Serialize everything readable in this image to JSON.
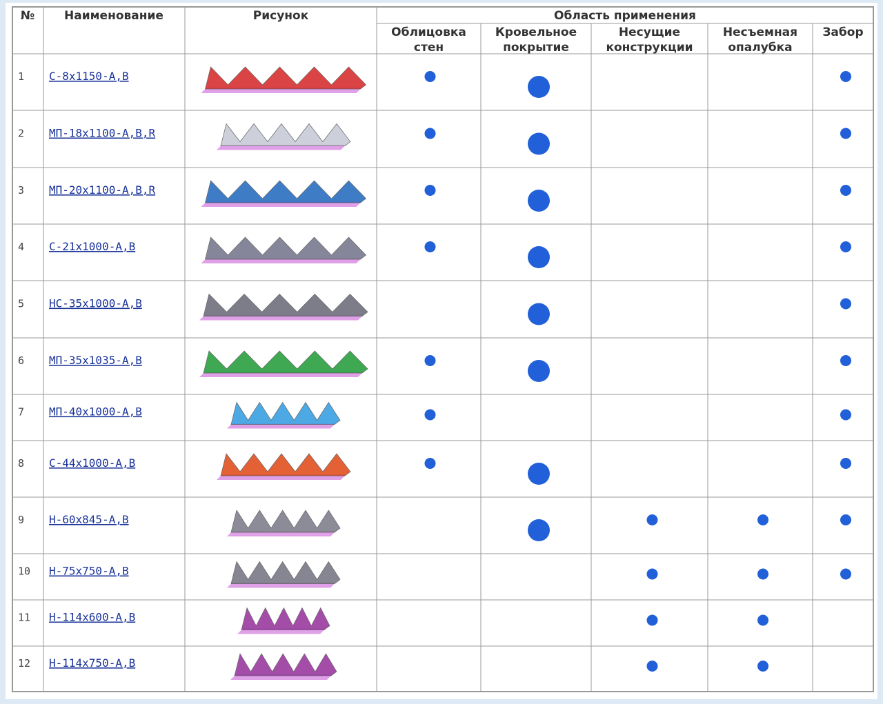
{
  "table": {
    "headers": {
      "number": "№",
      "name": "Наименование",
      "picture": "Рисунок",
      "area": "Область применения",
      "uses": [
        [
          "Облицовка",
          "стен"
        ],
        [
          "Кровельное",
          "покрытие"
        ],
        [
          "Несущие",
          "конструкции"
        ],
        [
          "Несъемная",
          "опалубка"
        ],
        [
          "Забор"
        ]
      ]
    },
    "rows": [
      {
        "number": 1,
        "name": "С-8х1150-А,В",
        "uses": [
          true,
          true,
          false,
          false,
          true
        ]
      },
      {
        "number": 2,
        "name": "МП-18х1100-А,В,R",
        "uses": [
          true,
          true,
          false,
          false,
          true
        ]
      },
      {
        "number": 3,
        "name": "МП-20х1100-А,В,R",
        "uses": [
          true,
          true,
          false,
          false,
          true
        ]
      },
      {
        "number": 4,
        "name": "С-21х1000-А,В",
        "uses": [
          true,
          true,
          false,
          false,
          true
        ]
      },
      {
        "number": 5,
        "name": "НС-35х1000-А,В",
        "uses": [
          false,
          true,
          false,
          false,
          true
        ]
      },
      {
        "number": 6,
        "name": "МП-35х1035-А,В",
        "uses": [
          true,
          true,
          false,
          false,
          true
        ]
      },
      {
        "number": 7,
        "name": "МП-40х1000-А,В",
        "uses": [
          true,
          false,
          false,
          false,
          true
        ]
      },
      {
        "number": 8,
        "name": "С-44х1000-А,В",
        "uses": [
          true,
          true,
          false,
          false,
          true
        ]
      },
      {
        "number": 9,
        "name": "Н-60х845-А,В",
        "uses": [
          false,
          true,
          true,
          true,
          true
        ]
      },
      {
        "number": 10,
        "name": "Н-75х750-А,В",
        "uses": [
          false,
          false,
          true,
          true,
          true
        ]
      },
      {
        "number": 11,
        "name": "Н-114х600-А,В",
        "uses": [
          false,
          false,
          true,
          true,
          false
        ]
      },
      {
        "number": 12,
        "name": "Н-114х750-А,В",
        "uses": [
          false,
          false,
          true,
          true,
          false
        ]
      }
    ]
  }
}
